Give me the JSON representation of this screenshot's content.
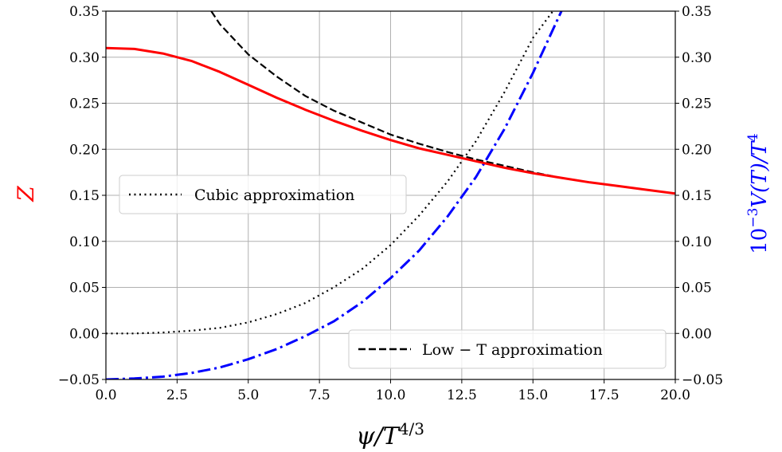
{
  "chart_data": {
    "type": "line",
    "xlabel": "ψ/T",
    "xlabel_exp": "4/3",
    "ylabel_left": "Z",
    "ylabel_right": "10",
    "ylabel_right_exp1": "−3",
    "ylabel_right_mid": "V(T)/T",
    "ylabel_right_exp2": "4",
    "xlim": [
      0,
      20
    ],
    "ylim": [
      -0.05,
      0.35
    ],
    "grid": true,
    "x_ticks": [
      "0.0",
      "2.5",
      "5.0",
      "7.5",
      "10.0",
      "12.5",
      "15.0",
      "17.5",
      "20.0"
    ],
    "y_ticks": [
      "−0.05",
      "0.00",
      "0.05",
      "0.10",
      "0.15",
      "0.20",
      "0.25",
      "0.30",
      "0.35"
    ],
    "colors": {
      "Z": "#ff0000",
      "potential": "#0000ff",
      "cubic": "#000000",
      "lowT": "#000000"
    },
    "series": [
      {
        "key": "Z",
        "style": "solid",
        "x": [
          0,
          1,
          2,
          3,
          4,
          5,
          6,
          7,
          8,
          9,
          10,
          11,
          12,
          13,
          14,
          15,
          16,
          17,
          18,
          19,
          20
        ],
        "y": [
          0.31,
          0.309,
          0.304,
          0.296,
          0.284,
          0.27,
          0.256,
          0.243,
          0.231,
          0.22,
          0.21,
          0.201,
          0.194,
          0.187,
          0.18,
          0.174,
          0.169,
          0.164,
          0.16,
          0.156,
          0.152
        ]
      },
      {
        "key": "lowT",
        "name": "Low − T approximation",
        "style": "dashed",
        "x": [
          3.7,
          4,
          5,
          6,
          7,
          8,
          9,
          10,
          11,
          12,
          13,
          14,
          15,
          16,
          17,
          18,
          19,
          20
        ],
        "y": [
          0.35,
          0.336,
          0.303,
          0.279,
          0.258,
          0.242,
          0.229,
          0.216,
          0.206,
          0.197,
          0.189,
          0.182,
          0.175,
          0.169,
          0.164,
          0.16,
          0.156,
          0.152
        ]
      },
      {
        "key": "cubic",
        "name": "Cubic approximation",
        "style": "dotted",
        "x": [
          0,
          1,
          2,
          3,
          4,
          5,
          6,
          7,
          8,
          9,
          10,
          11,
          12,
          13,
          14,
          15,
          15.7
        ],
        "y": [
          0.0,
          0.0,
          0.001,
          0.003,
          0.006,
          0.012,
          0.021,
          0.033,
          0.05,
          0.07,
          0.096,
          0.128,
          0.165,
          0.209,
          0.262,
          0.321,
          0.35
        ]
      },
      {
        "key": "potential",
        "style": "dashdot",
        "x": [
          0,
          1,
          2,
          3,
          4,
          5,
          6,
          7,
          8,
          9,
          10,
          11,
          12,
          13,
          14,
          15,
          16
        ],
        "y": [
          -0.05,
          -0.049,
          -0.047,
          -0.043,
          -0.037,
          -0.028,
          -0.017,
          -0.003,
          0.013,
          0.034,
          0.06,
          0.09,
          0.127,
          0.17,
          0.222,
          0.283,
          0.35
        ]
      }
    ],
    "legends": [
      {
        "series": "cubic",
        "label": "Cubic approximation",
        "placement": "center-left"
      },
      {
        "series": "lowT",
        "label": "Low − T approximation",
        "placement": "lower-right"
      }
    ]
  }
}
